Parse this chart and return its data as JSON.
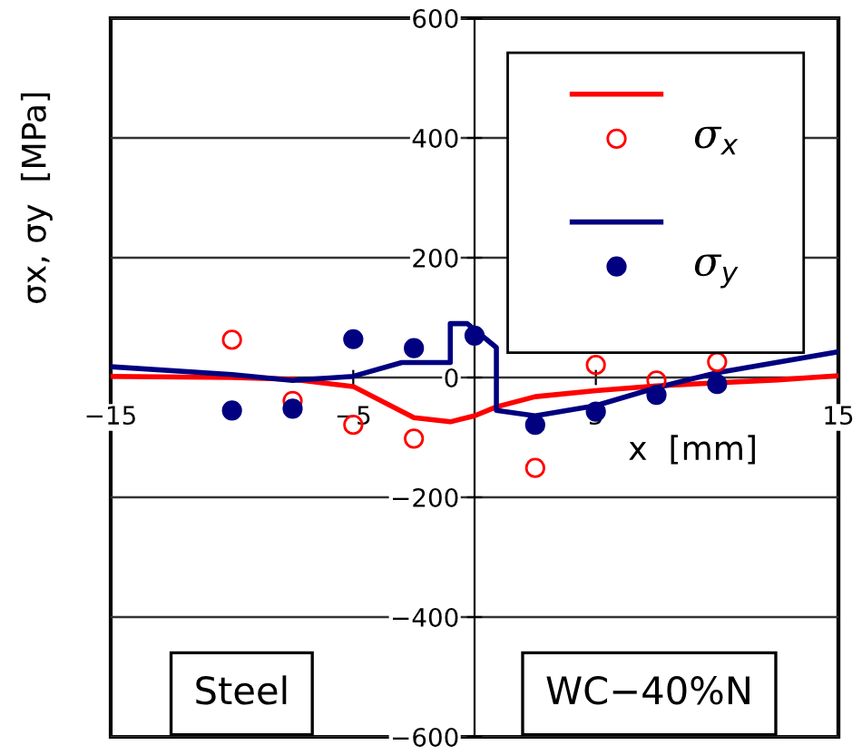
{
  "chart_data": {
    "type": "line",
    "xlabel": "x  [mm]",
    "ylabel": "σx, σy  [MPa]",
    "xlim": [
      -15,
      15
    ],
    "xticks": [
      -15,
      -5,
      5,
      15
    ],
    "ylim": [
      -600,
      600
    ],
    "yticks": [
      600,
      400,
      200,
      0,
      -200,
      -400,
      -600
    ],
    "grid": "y",
    "legend": "top right",
    "series": [
      {
        "color": "#ff0000",
        "x": [
          -15,
          -10,
          -7.5,
          -5,
          -2.5,
          -1,
          0,
          0.9,
          2.5,
          5,
          7.5,
          12.5,
          15
        ],
        "values": [
          2,
          0,
          -3,
          -15,
          -67,
          -74,
          -64,
          -49,
          -32,
          -22,
          -14,
          -4,
          3
        ]
      },
      {
        "type": "scatter",
        "name": "σ$_{x}$",
        "color": "#ff0000",
        "marker": "circle",
        "x": [
          -10,
          -7.5,
          -5,
          -2.5,
          2.5,
          5,
          7.5,
          10
        ],
        "values": [
          63,
          -39,
          -79,
          -102,
          -151,
          21,
          -5,
          26
        ]
      },
      {
        "color": "#000080",
        "x": [
          -15,
          -10,
          -7.5,
          -5,
          -3,
          -1,
          -1,
          -0.3,
          0.9,
          0.9,
          2.5,
          5,
          7.5,
          10,
          15
        ],
        "values": [
          18,
          5,
          -5,
          2,
          25,
          25,
          90,
          90,
          50,
          -55,
          -64,
          -47,
          -17,
          8,
          43
        ]
      },
      {
        "type": "scatter",
        "name": "σ$_{y}$",
        "color": "#000080",
        "marker": "circle",
        "x": [
          -10,
          -7.5,
          -5,
          -2.5,
          0,
          2.5,
          5,
          7.5,
          10
        ],
        "values": [
          -55,
          -52,
          64,
          49,
          70,
          -79,
          -57,
          -29,
          -11
        ]
      }
    ],
    "annotations": [
      "Steel",
      "WC−40%N"
    ]
  }
}
